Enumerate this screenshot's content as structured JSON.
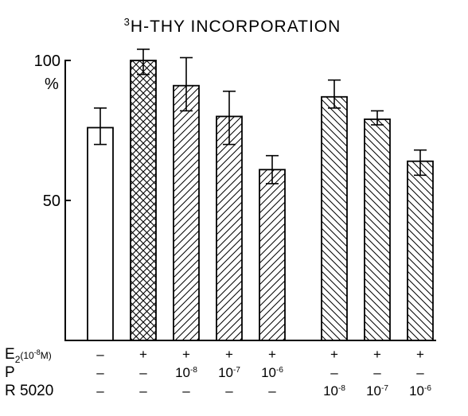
{
  "chart_data": {
    "type": "bar",
    "title_sup": "3",
    "title_main": "H-THY INCORPORATION",
    "ylabel": "%",
    "ylim": [
      0,
      100
    ],
    "y_ticks": [
      {
        "value": 100,
        "label": "100"
      },
      {
        "value": 50,
        "label": "50"
      }
    ],
    "bars": [
      {
        "value": 76,
        "err_low": 70,
        "err_high": 83,
        "pattern": "none",
        "group": 0
      },
      {
        "value": 100,
        "err_low": 95,
        "err_high": 104,
        "pattern": "cross",
        "group": 0
      },
      {
        "value": 91,
        "err_low": 82,
        "err_high": 101,
        "pattern": "fwd",
        "group": 0
      },
      {
        "value": 80,
        "err_low": 70,
        "err_high": 89,
        "pattern": "fwd",
        "group": 0
      },
      {
        "value": 61,
        "err_low": 56,
        "err_high": 66,
        "pattern": "fwd",
        "group": 0
      },
      {
        "value": 87,
        "err_low": 83,
        "err_high": 93,
        "pattern": "back",
        "group": 1
      },
      {
        "value": 79,
        "err_low": 77,
        "err_high": 82,
        "pattern": "back",
        "group": 1
      },
      {
        "value": 64,
        "err_low": 59,
        "err_high": 68,
        "pattern": "back",
        "group": 1
      }
    ],
    "condition_rows": [
      {
        "label_main": "E",
        "label_sub": "2",
        "label_tail": "(10",
        "label_sup": "-8",
        "label_end": "M)",
        "cells": [
          {
            "base": "–",
            "exp": ""
          },
          {
            "base": "+",
            "exp": ""
          },
          {
            "base": "+",
            "exp": ""
          },
          {
            "base": "+",
            "exp": ""
          },
          {
            "base": "+",
            "exp": ""
          },
          {
            "base": "+",
            "exp": ""
          },
          {
            "base": "+",
            "exp": ""
          },
          {
            "base": "+",
            "exp": ""
          }
        ]
      },
      {
        "label_main": "P",
        "label_sub": "",
        "label_tail": "",
        "label_sup": "",
        "label_end": "",
        "cells": [
          {
            "base": "–",
            "exp": ""
          },
          {
            "base": "–",
            "exp": ""
          },
          {
            "base": "10",
            "exp": "-8"
          },
          {
            "base": "10",
            "exp": "-7"
          },
          {
            "base": "10",
            "exp": "-6"
          },
          {
            "base": "–",
            "exp": ""
          },
          {
            "base": "–",
            "exp": ""
          },
          {
            "base": "–",
            "exp": ""
          }
        ]
      },
      {
        "label_main": "R 5020",
        "label_sub": "",
        "label_tail": "",
        "label_sup": "",
        "label_end": "",
        "cells": [
          {
            "base": "–",
            "exp": ""
          },
          {
            "base": "–",
            "exp": ""
          },
          {
            "base": "–",
            "exp": ""
          },
          {
            "base": "–",
            "exp": ""
          },
          {
            "base": "–",
            "exp": ""
          },
          {
            "base": "10",
            "exp": "-8"
          },
          {
            "base": "10",
            "exp": "-7"
          },
          {
            "base": "10",
            "exp": "-6"
          }
        ]
      }
    ]
  }
}
